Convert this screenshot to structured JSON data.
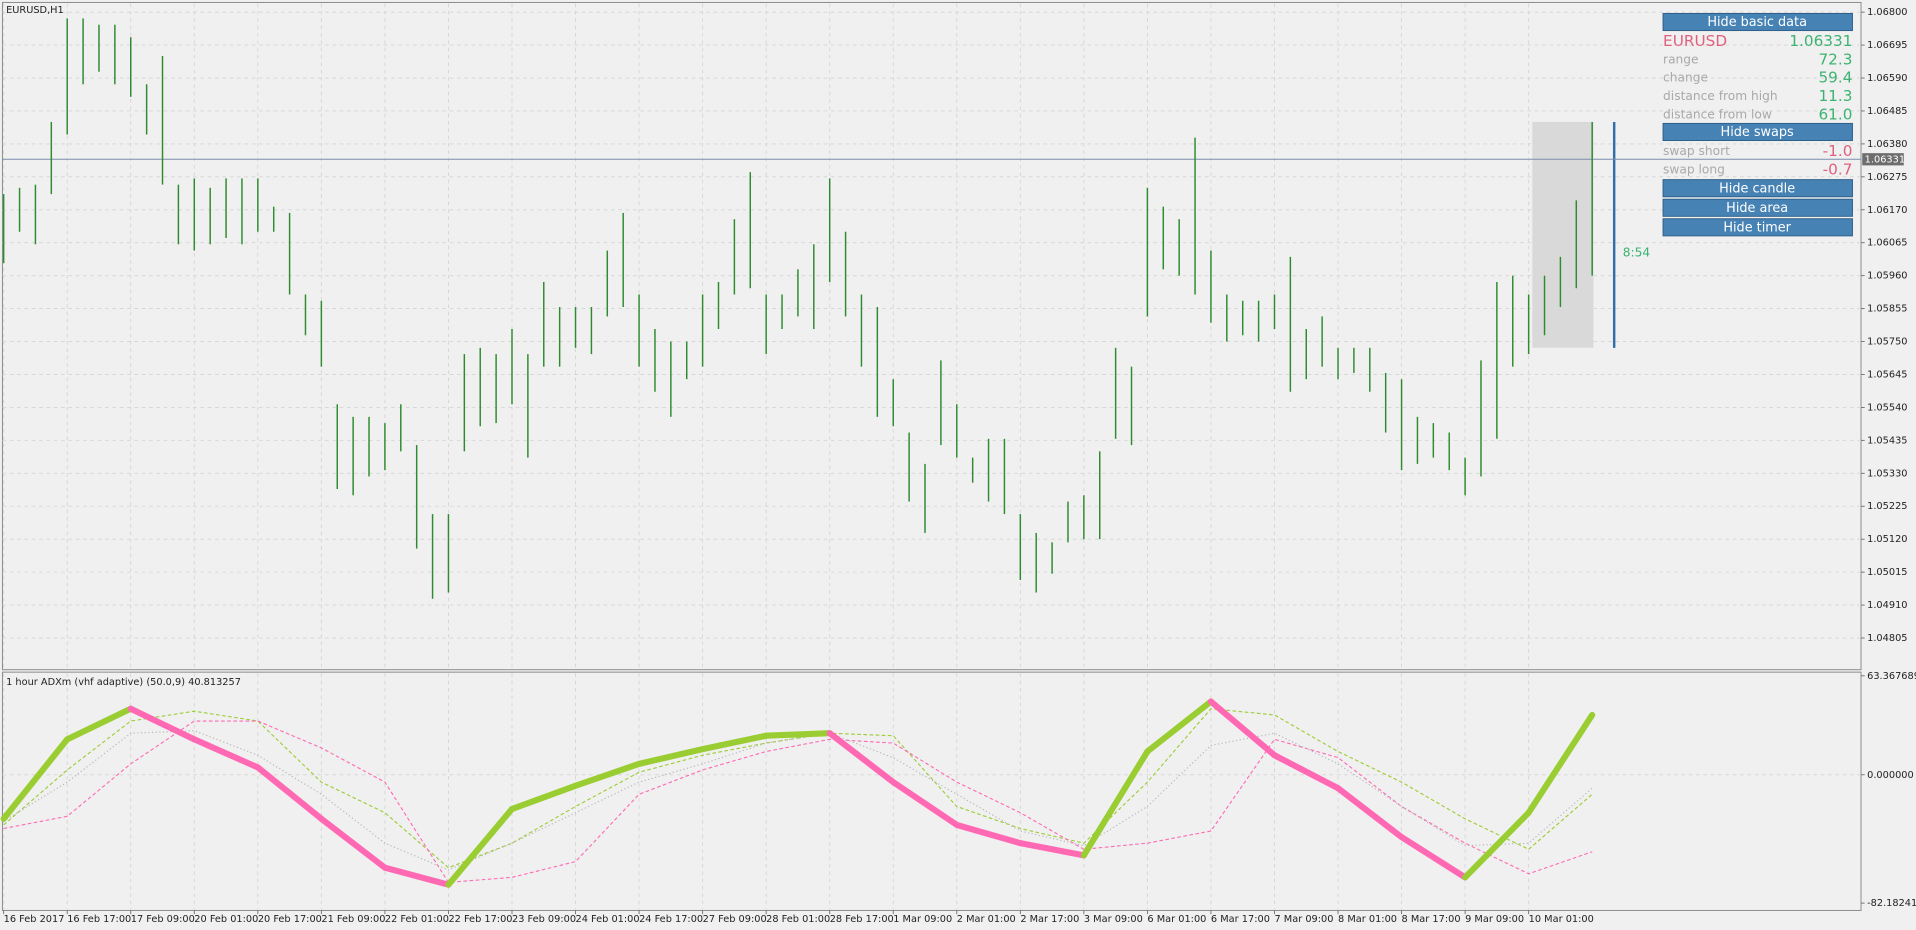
{
  "chart_data": [
    {
      "type": "ohlc",
      "title": "EURUSD,H1",
      "color": "#2e8b2e",
      "grid": true,
      "ylim": [
        1.04704,
        1.06827
      ],
      "yticks": [
        {
          "value": 1.068,
          "label": "1.06800"
        },
        1.06695,
        {
          "value": 1.0659,
          "label": "1.06590"
        },
        1.06485,
        {
          "value": 1.0638,
          "label": "1.06380"
        },
        1.06275,
        {
          "value": 1.0617,
          "label": "1.06170"
        },
        1.06065,
        {
          "value": 1.0596,
          "label": "1.05960"
        },
        1.05855,
        {
          "value": 1.0575,
          "label": "1.05750"
        },
        1.05645,
        {
          "value": 1.0554,
          "label": "1.05540"
        },
        1.05435,
        {
          "value": 1.0533,
          "label": "1.05330"
        },
        1.05225,
        {
          "value": 1.0512,
          "label": "1.05120"
        },
        1.05015,
        {
          "value": 1.0491,
          "label": "1.04910"
        },
        1.04805
      ],
      "current_price": {
        "value": 1.06331,
        "label": "1.06331"
      },
      "current_price_color": "#7b8db0",
      "range_box": {
        "high": 1.0645,
        "low": 1.0573
      },
      "timer": "8:54",
      "x": [
        "16 Feb 2017",
        null,
        null,
        null,
        "16 Feb 17:00",
        null,
        null,
        null,
        "17 Feb 09:00",
        null,
        null,
        null,
        "20 Feb 01:00",
        null,
        null,
        null,
        "20 Feb 17:00",
        null,
        null,
        null,
        "21 Feb 09:00",
        null,
        null,
        null,
        "22 Feb 01:00",
        null,
        null,
        null,
        "22 Feb 17:00",
        null,
        null,
        null,
        "23 Feb 09:00",
        null,
        null,
        null,
        "24 Feb 01:00",
        null,
        null,
        null,
        "24 Feb 17:00",
        null,
        null,
        null,
        "27 Feb 09:00",
        null,
        null,
        null,
        "28 Feb 01:00",
        null,
        null,
        null,
        "28 Feb 17:00",
        null,
        null,
        null,
        "1 Mar 09:00",
        null,
        null,
        null,
        "2 Mar 01:00",
        null,
        null,
        null,
        "2 Mar 17:00",
        null,
        null,
        null,
        "3 Mar 09:00",
        null,
        null,
        null,
        "6 Mar 01:00",
        null,
        null,
        null,
        "6 Mar 17:00",
        null,
        null,
        null,
        "7 Mar 09:00",
        null,
        null,
        null,
        "8 Mar 01:00",
        null,
        null,
        null,
        "8 Mar 17:00",
        null,
        null,
        null,
        "9 Mar 09:00",
        null,
        null,
        null,
        "10 Mar 01:00",
        null,
        null,
        null,
        null
      ],
      "high": [
        1.0622,
        1.0624,
        1.0625,
        1.0645,
        1.0678,
        1.0678,
        1.0676,
        1.0676,
        1.0672,
        1.0657,
        1.0666,
        1.0625,
        1.0627,
        1.0624,
        1.0627,
        1.0627,
        1.0627,
        1.0618,
        1.0616,
        1.059,
        1.0588,
        1.0555,
        1.0551,
        1.0551,
        1.0549,
        1.0555,
        1.0542,
        1.052,
        1.052,
        1.0571,
        1.0573,
        1.0571,
        1.0579,
        1.0571,
        1.0594,
        1.0586,
        1.0586,
        1.0586,
        1.0604,
        1.0616,
        1.059,
        1.0579,
        1.0575,
        1.0575,
        1.059,
        1.0594,
        1.0614,
        1.0629,
        1.059,
        1.059,
        1.0598,
        1.0606,
        1.0627,
        1.061,
        1.059,
        1.0586,
        1.0563,
        1.0546,
        1.0536,
        1.0569,
        1.0555,
        1.0538,
        1.0544,
        1.0544,
        1.052,
        1.0514,
        1.0511,
        1.0524,
        1.0526,
        1.054,
        1.0573,
        1.0567,
        1.0624,
        1.0618,
        1.0614,
        1.064,
        1.0604,
        1.059,
        1.0588,
        1.0588,
        1.059,
        1.0602,
        1.0579,
        1.0583,
        1.0573,
        1.0573,
        1.0573,
        1.0565,
        1.0563,
        1.0551,
        1.0549,
        1.0546,
        1.0538,
        1.0569,
        1.0594,
        1.0596,
        1.059,
        1.0596,
        1.0602,
        1.062,
        1.0645
      ],
      "low": [
        1.06,
        1.061,
        1.0606,
        1.0622,
        1.0641,
        1.0657,
        1.0661,
        1.0657,
        1.0653,
        1.0641,
        1.0625,
        1.0606,
        1.0604,
        1.0606,
        1.0608,
        1.0606,
        1.061,
        1.061,
        1.059,
        1.0577,
        1.0567,
        1.0528,
        1.0526,
        1.0532,
        1.0534,
        1.054,
        1.0509,
        1.0493,
        1.0495,
        1.054,
        1.0548,
        1.0549,
        1.0555,
        1.0538,
        1.0567,
        1.0567,
        1.0573,
        1.0571,
        1.0583,
        1.0586,
        1.0567,
        1.0559,
        1.0551,
        1.0563,
        1.0567,
        1.0579,
        1.059,
        1.0592,
        1.0571,
        1.0579,
        1.0583,
        1.0579,
        1.0594,
        1.0583,
        1.0567,
        1.0551,
        1.0548,
        1.0524,
        1.0514,
        1.0542,
        1.0538,
        1.053,
        1.0524,
        1.052,
        1.0499,
        1.0495,
        1.0501,
        1.0511,
        1.0512,
        1.0512,
        1.0544,
        1.0542,
        1.0583,
        1.0598,
        1.0596,
        1.059,
        1.0581,
        1.0575,
        1.0577,
        1.0575,
        1.0579,
        1.0559,
        1.0563,
        1.0567,
        1.0563,
        1.0565,
        1.0559,
        1.0546,
        1.0534,
        1.0536,
        1.0538,
        1.0534,
        1.0526,
        1.0532,
        1.0544,
        1.0567,
        1.0571,
        1.0577,
        1.0586,
        1.0592,
        1.0596
      ]
    },
    {
      "type": "line",
      "title": "1 hour ADXm (vhf adaptive) (50.0,9) 40.813257",
      "ylim": [
        -82.182411,
        63.367689
      ],
      "yticks": [
        63.367689,
        {
          "value": 0,
          "label": "0.000000"
        },
        -82.182411
      ],
      "series": [
        {
          "up_color": "#9acd32",
          "down_color": "#ff69b4",
          "values": [
            -28.2,
            22.7,
            42.3,
            22.7,
            4.7,
            -28.2,
            -59.5,
            -70.4,
            -21.9,
            -7.0,
            7.0,
            16.4,
            25.0,
            26.6,
            -4.7,
            -32.1,
            -43.8,
            -51.6,
            14.9,
            46.9,
            12.5,
            -8.6,
            -39.9,
            -65.7,
            -24.3,
            38.3
          ]
        },
        {
          "color": "#9acd32",
          "line_style": "dashed",
          "values": [
            -32.1,
            3.1,
            34.4,
            40.7,
            34.4,
            -4.7,
            -24.3,
            -59.5,
            -43.8,
            -20.3,
            1.6,
            12.5,
            20.3,
            26.6,
            25.0,
            -20.3,
            -34.4,
            -43.8,
            -4.7,
            42.3,
            38.3,
            14.9,
            -4.7,
            -28.2,
            -47.7,
            -12.5
          ]
        },
        {
          "color": "#ff69b4",
          "line_style": "dashed",
          "values": [
            -34.4,
            -26.6,
            7.0,
            34.4,
            34.4,
            17.2,
            -4.7,
            -68.9,
            -65.7,
            -55.6,
            -12.5,
            3.1,
            14.9,
            22.7,
            20.3,
            -4.7,
            -24.3,
            -47.7,
            -43.8,
            -36.0,
            22.7,
            11.0,
            -20.3,
            -43.8,
            -63.4,
            -49.3
          ]
        },
        {
          "color": "#b4b4b4",
          "line_style": "dotted",
          "values": [
            -29.7,
            -4.7,
            26.6,
            28.2,
            12.5,
            -12.5,
            -43.8,
            -61.0,
            -43.8,
            -24.3,
            -4.7,
            7.0,
            20.3,
            26.6,
            10.9,
            -12.5,
            -36.0,
            -45.4,
            -20.3,
            18.8,
            26.6,
            7.0,
            -20.3,
            -45.4,
            -43.8,
            -8.6
          ]
        }
      ]
    }
  ],
  "panel": {
    "basic_button": "Hide basic data",
    "symbol": "EURUSD",
    "price": "1.06331",
    "rows": [
      {
        "label": "range",
        "value": "72.3"
      },
      {
        "label": "change",
        "value": "59.4"
      },
      {
        "label": "distance from high",
        "value": "11.3"
      },
      {
        "label": "distance from low",
        "value": "61.0"
      }
    ],
    "swaps_button": "Hide swaps",
    "swaps": [
      {
        "label": "swap short",
        "value": "-1.0"
      },
      {
        "label": "swap long",
        "value": "-0.7"
      }
    ],
    "candle_button": "Hide candle",
    "area_button": "Hide area",
    "timer_button": "Hide timer"
  }
}
